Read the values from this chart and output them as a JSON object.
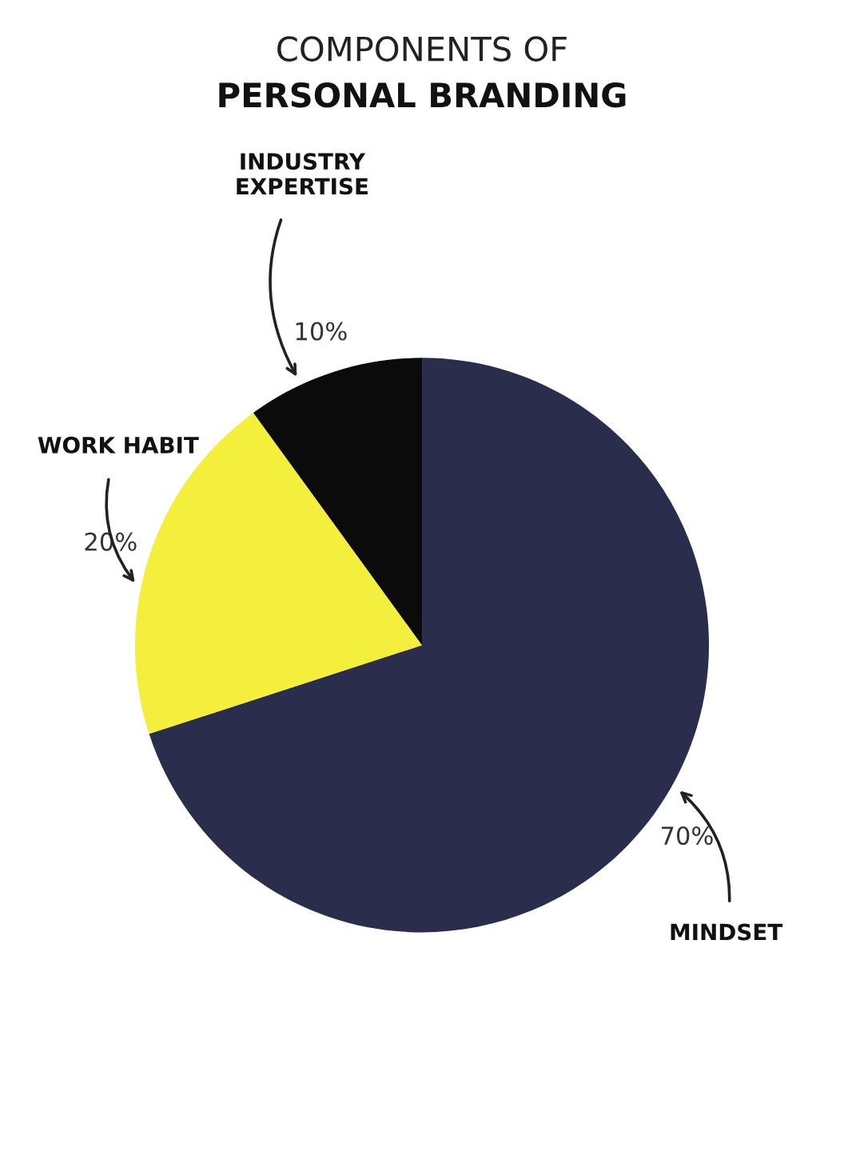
{
  "chart_data": {
    "type": "pie",
    "title": "COMPONENTS OF",
    "subtitle": "PERSONAL BRANDING",
    "categories": [
      "MINDSET",
      "WORK HABIT",
      "INDUSTRY\nEXPERTISE"
    ],
    "values": [
      70,
      20,
      10
    ],
    "colors": [
      "#2b2d4d",
      "#f4ee3c",
      "#0b0b0b"
    ],
    "value_labels": [
      "70%",
      "20%",
      "10%"
    ]
  }
}
